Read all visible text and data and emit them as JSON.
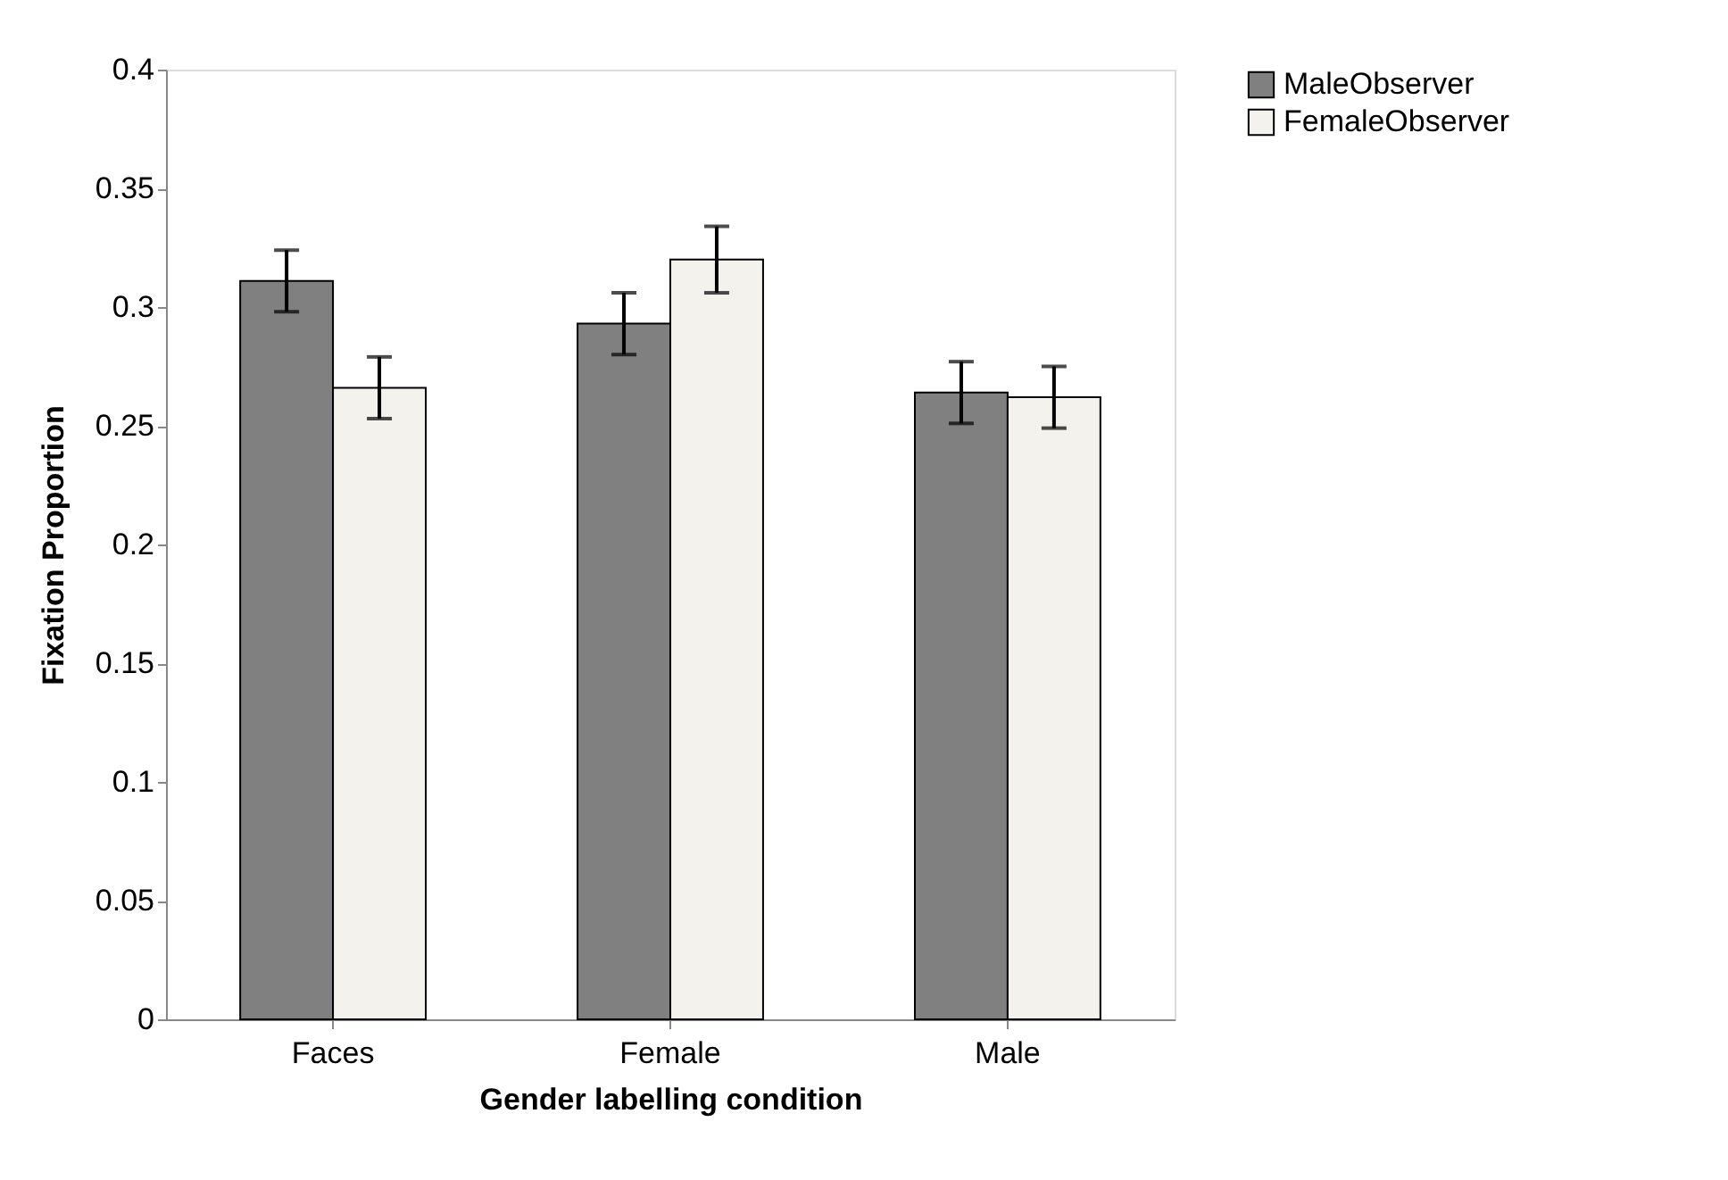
{
  "chart_data": {
    "type": "bar",
    "xlabel": "Gender labelling condition",
    "ylabel": "Fixation Proportion",
    "categories": [
      "Faces",
      "Female",
      "Male"
    ],
    "series": [
      {
        "name": "MaleObserver",
        "color": "#808080",
        "values": [
          0.311,
          0.293,
          0.264
        ],
        "errors": [
          0.013,
          0.013,
          0.013
        ]
      },
      {
        "name": "FemaleObserver",
        "color": "#f3f2ec",
        "values": [
          0.266,
          0.32,
          0.262
        ],
        "errors": [
          0.013,
          0.014,
          0.013
        ]
      }
    ],
    "ylim": [
      0,
      0.4
    ],
    "yticks": [
      0,
      0.05,
      0.1,
      0.15,
      0.2,
      0.25,
      0.3,
      0.35,
      0.4
    ],
    "grid": false,
    "legend": "right"
  }
}
